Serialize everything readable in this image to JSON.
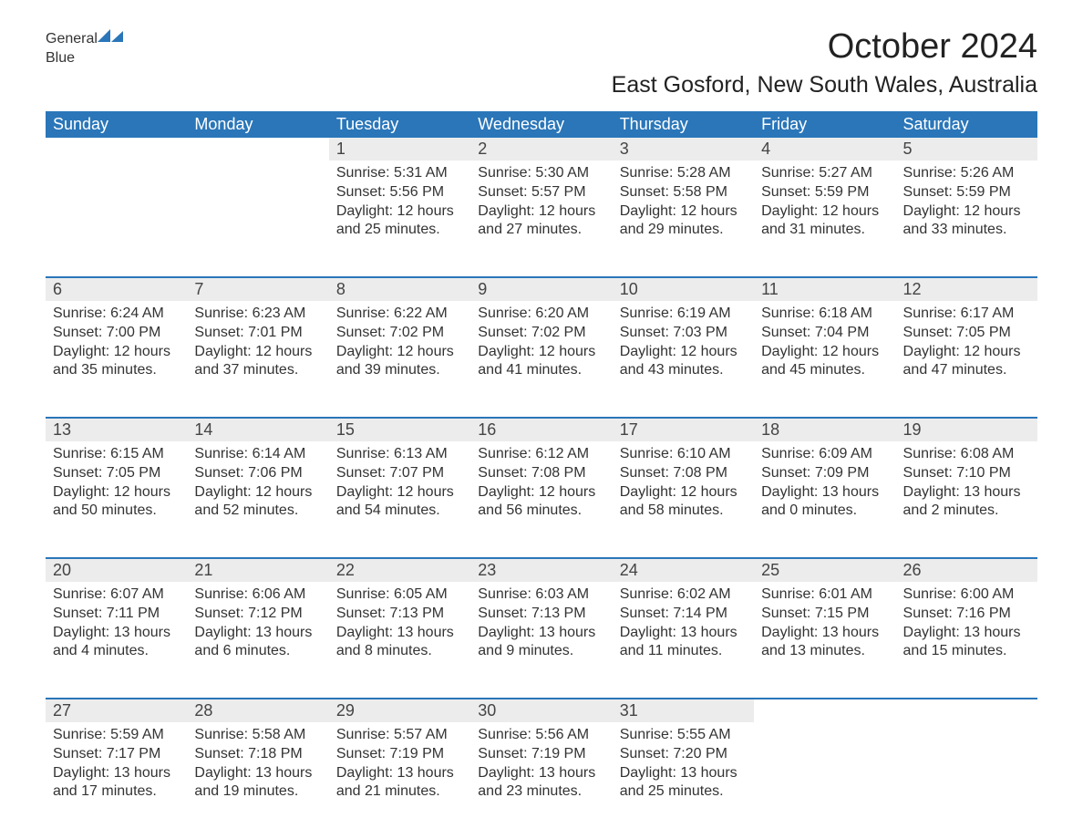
{
  "logo": {
    "text1": "General",
    "text2": "Blue",
    "flag_color": "#2a76b9"
  },
  "title": "October 2024",
  "subtitle": "East Gosford, New South Wales, Australia",
  "colors": {
    "header_bg": "#2a76b9",
    "header_fg": "#ffffff",
    "daynum_bg": "#ececec",
    "row_border": "#2a76b9",
    "text": "#333333",
    "background": "#ffffff"
  },
  "day_headers": [
    "Sunday",
    "Monday",
    "Tuesday",
    "Wednesday",
    "Thursday",
    "Friday",
    "Saturday"
  ],
  "weeks": [
    [
      null,
      null,
      {
        "n": "1",
        "sr": "Sunrise: 5:31 AM",
        "ss": "Sunset: 5:56 PM",
        "d1": "Daylight: 12 hours",
        "d2": "and 25 minutes."
      },
      {
        "n": "2",
        "sr": "Sunrise: 5:30 AM",
        "ss": "Sunset: 5:57 PM",
        "d1": "Daylight: 12 hours",
        "d2": "and 27 minutes."
      },
      {
        "n": "3",
        "sr": "Sunrise: 5:28 AM",
        "ss": "Sunset: 5:58 PM",
        "d1": "Daylight: 12 hours",
        "d2": "and 29 minutes."
      },
      {
        "n": "4",
        "sr": "Sunrise: 5:27 AM",
        "ss": "Sunset: 5:59 PM",
        "d1": "Daylight: 12 hours",
        "d2": "and 31 minutes."
      },
      {
        "n": "5",
        "sr": "Sunrise: 5:26 AM",
        "ss": "Sunset: 5:59 PM",
        "d1": "Daylight: 12 hours",
        "d2": "and 33 minutes."
      }
    ],
    [
      {
        "n": "6",
        "sr": "Sunrise: 6:24 AM",
        "ss": "Sunset: 7:00 PM",
        "d1": "Daylight: 12 hours",
        "d2": "and 35 minutes."
      },
      {
        "n": "7",
        "sr": "Sunrise: 6:23 AM",
        "ss": "Sunset: 7:01 PM",
        "d1": "Daylight: 12 hours",
        "d2": "and 37 minutes."
      },
      {
        "n": "8",
        "sr": "Sunrise: 6:22 AM",
        "ss": "Sunset: 7:02 PM",
        "d1": "Daylight: 12 hours",
        "d2": "and 39 minutes."
      },
      {
        "n": "9",
        "sr": "Sunrise: 6:20 AM",
        "ss": "Sunset: 7:02 PM",
        "d1": "Daylight: 12 hours",
        "d2": "and 41 minutes."
      },
      {
        "n": "10",
        "sr": "Sunrise: 6:19 AM",
        "ss": "Sunset: 7:03 PM",
        "d1": "Daylight: 12 hours",
        "d2": "and 43 minutes."
      },
      {
        "n": "11",
        "sr": "Sunrise: 6:18 AM",
        "ss": "Sunset: 7:04 PM",
        "d1": "Daylight: 12 hours",
        "d2": "and 45 minutes."
      },
      {
        "n": "12",
        "sr": "Sunrise: 6:17 AM",
        "ss": "Sunset: 7:05 PM",
        "d1": "Daylight: 12 hours",
        "d2": "and 47 minutes."
      }
    ],
    [
      {
        "n": "13",
        "sr": "Sunrise: 6:15 AM",
        "ss": "Sunset: 7:05 PM",
        "d1": "Daylight: 12 hours",
        "d2": "and 50 minutes."
      },
      {
        "n": "14",
        "sr": "Sunrise: 6:14 AM",
        "ss": "Sunset: 7:06 PM",
        "d1": "Daylight: 12 hours",
        "d2": "and 52 minutes."
      },
      {
        "n": "15",
        "sr": "Sunrise: 6:13 AM",
        "ss": "Sunset: 7:07 PM",
        "d1": "Daylight: 12 hours",
        "d2": "and 54 minutes."
      },
      {
        "n": "16",
        "sr": "Sunrise: 6:12 AM",
        "ss": "Sunset: 7:08 PM",
        "d1": "Daylight: 12 hours",
        "d2": "and 56 minutes."
      },
      {
        "n": "17",
        "sr": "Sunrise: 6:10 AM",
        "ss": "Sunset: 7:08 PM",
        "d1": "Daylight: 12 hours",
        "d2": "and 58 minutes."
      },
      {
        "n": "18",
        "sr": "Sunrise: 6:09 AM",
        "ss": "Sunset: 7:09 PM",
        "d1": "Daylight: 13 hours",
        "d2": "and 0 minutes."
      },
      {
        "n": "19",
        "sr": "Sunrise: 6:08 AM",
        "ss": "Sunset: 7:10 PM",
        "d1": "Daylight: 13 hours",
        "d2": "and 2 minutes."
      }
    ],
    [
      {
        "n": "20",
        "sr": "Sunrise: 6:07 AM",
        "ss": "Sunset: 7:11 PM",
        "d1": "Daylight: 13 hours",
        "d2": "and 4 minutes."
      },
      {
        "n": "21",
        "sr": "Sunrise: 6:06 AM",
        "ss": "Sunset: 7:12 PM",
        "d1": "Daylight: 13 hours",
        "d2": "and 6 minutes."
      },
      {
        "n": "22",
        "sr": "Sunrise: 6:05 AM",
        "ss": "Sunset: 7:13 PM",
        "d1": "Daylight: 13 hours",
        "d2": "and 8 minutes."
      },
      {
        "n": "23",
        "sr": "Sunrise: 6:03 AM",
        "ss": "Sunset: 7:13 PM",
        "d1": "Daylight: 13 hours",
        "d2": "and 9 minutes."
      },
      {
        "n": "24",
        "sr": "Sunrise: 6:02 AM",
        "ss": "Sunset: 7:14 PM",
        "d1": "Daylight: 13 hours",
        "d2": "and 11 minutes."
      },
      {
        "n": "25",
        "sr": "Sunrise: 6:01 AM",
        "ss": "Sunset: 7:15 PM",
        "d1": "Daylight: 13 hours",
        "d2": "and 13 minutes."
      },
      {
        "n": "26",
        "sr": "Sunrise: 6:00 AM",
        "ss": "Sunset: 7:16 PM",
        "d1": "Daylight: 13 hours",
        "d2": "and 15 minutes."
      }
    ],
    [
      {
        "n": "27",
        "sr": "Sunrise: 5:59 AM",
        "ss": "Sunset: 7:17 PM",
        "d1": "Daylight: 13 hours",
        "d2": "and 17 minutes."
      },
      {
        "n": "28",
        "sr": "Sunrise: 5:58 AM",
        "ss": "Sunset: 7:18 PM",
        "d1": "Daylight: 13 hours",
        "d2": "and 19 minutes."
      },
      {
        "n": "29",
        "sr": "Sunrise: 5:57 AM",
        "ss": "Sunset: 7:19 PM",
        "d1": "Daylight: 13 hours",
        "d2": "and 21 minutes."
      },
      {
        "n": "30",
        "sr": "Sunrise: 5:56 AM",
        "ss": "Sunset: 7:19 PM",
        "d1": "Daylight: 13 hours",
        "d2": "and 23 minutes."
      },
      {
        "n": "31",
        "sr": "Sunrise: 5:55 AM",
        "ss": "Sunset: 7:20 PM",
        "d1": "Daylight: 13 hours",
        "d2": "and 25 minutes."
      },
      null,
      null
    ]
  ]
}
